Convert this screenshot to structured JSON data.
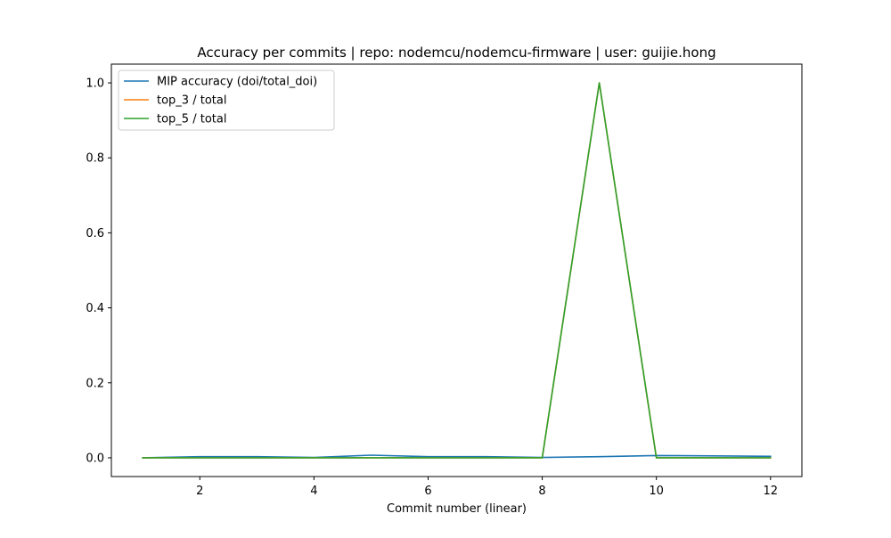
{
  "chart_data": {
    "type": "line",
    "title": "Accuracy per commits | repo: nodemcu/nodemcu-firmware | user: guijie.hong",
    "xlabel": "Commit number (linear)",
    "ylabel": "",
    "xlim": [
      0.45,
      12.55
    ],
    "ylim": [
      -0.05,
      1.05
    ],
    "xticks": [
      2,
      4,
      6,
      8,
      10,
      12
    ],
    "yticks": [
      0.0,
      0.2,
      0.4,
      0.6,
      0.8,
      1.0
    ],
    "xtick_labels": [
      "2",
      "4",
      "6",
      "8",
      "10",
      "12"
    ],
    "ytick_labels": [
      "0.0",
      "0.2",
      "0.4",
      "0.6",
      "0.8",
      "1.0"
    ],
    "grid": false,
    "legend_position": "top-left",
    "x": [
      1,
      2,
      3,
      4,
      5,
      6,
      7,
      8,
      9,
      10,
      11,
      12
    ],
    "series": [
      {
        "name": "MIP accuracy (doi/total_doi)",
        "color": "#1f77b4",
        "values": [
          0.0,
          0.003,
          0.003,
          0.001,
          0.007,
          0.003,
          0.003,
          0.001,
          0.003,
          0.006,
          0.005,
          0.004
        ]
      },
      {
        "name": "top_3 / total",
        "color": "#ff7f0e",
        "values": [
          0.0,
          0.0,
          0.0,
          0.0,
          0.0,
          0.0,
          0.0,
          0.0,
          1.0,
          0.0,
          0.0,
          0.0
        ]
      },
      {
        "name": "top_5 / total",
        "color": "#2ca02c",
        "values": [
          0.0,
          0.0,
          0.0,
          0.0,
          0.0,
          0.0,
          0.0,
          0.0,
          1.0,
          0.0,
          0.0,
          0.0
        ]
      }
    ]
  }
}
